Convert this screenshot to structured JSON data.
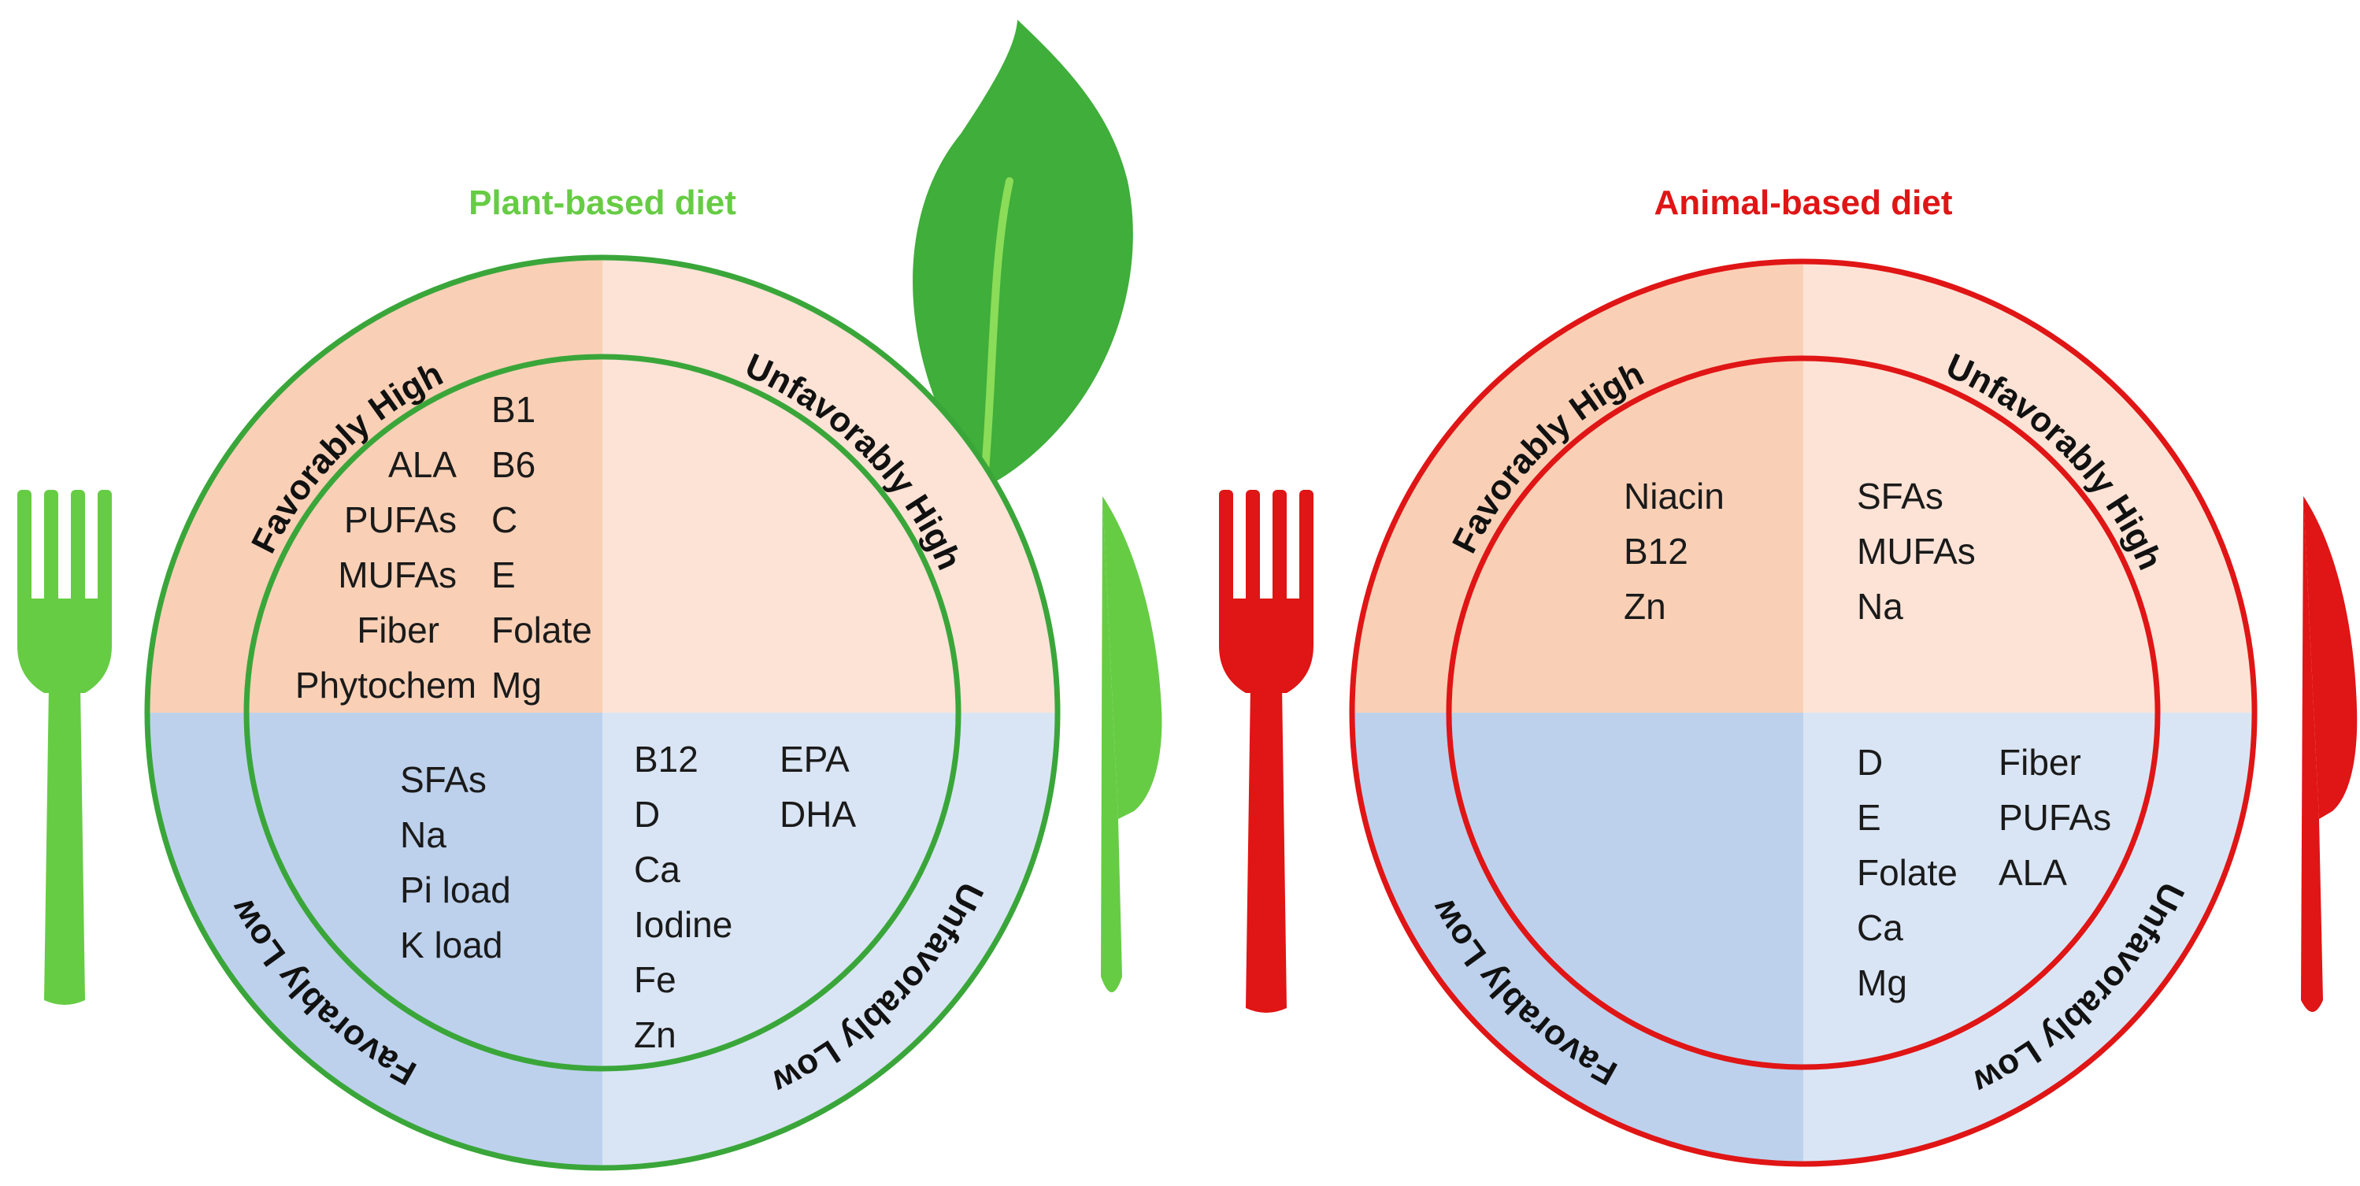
{
  "colors": {
    "plant_green": "#3aa63a",
    "plant_title": "#66cc44",
    "animal_red": "#e01515",
    "fav_high_fill": "#f9d0b6",
    "unfav_high_fill": "#fce3d6",
    "fav_low_fill": "#bdd1ec",
    "unfav_low_fill": "#d9e5f4"
  },
  "plates": [
    {
      "title": "Plant-based diet",
      "quadrant_labels": {
        "favorably_high": "Favorably High",
        "unfavorably_high": "Unfavorably High",
        "favorably_low": "Favorably Low",
        "unfavorably_low": "Unfavorably Low"
      },
      "favorably_high": {
        "col1": [
          "ALA",
          "PUFAs",
          "MUFAs",
          "Fiber",
          "Phytochem"
        ],
        "col2": [
          "B1",
          "B6",
          "C",
          "E",
          "Folate",
          "Mg"
        ]
      },
      "unfavorably_high": [],
      "favorably_low": [
        "SFAs",
        "Na",
        "Pi load",
        "K load"
      ],
      "unfavorably_low": {
        "col1": [
          "B12",
          "D",
          "Ca",
          "Iodine",
          "Fe",
          "Zn"
        ],
        "col2": [
          "EPA",
          "DHA"
        ]
      }
    },
    {
      "title": "Animal-based diet",
      "quadrant_labels": {
        "favorably_high": "Favorably High",
        "unfavorably_high": "Unfavorably High",
        "favorably_low": "Favorably Low",
        "unfavorably_low": "Unfavorably Low"
      },
      "favorably_high": [
        "Niacin",
        "B12",
        "Zn"
      ],
      "unfavorably_high": [
        "SFAs",
        "MUFAs",
        "Na"
      ],
      "favorably_low": [],
      "unfavorably_low": {
        "col1": [
          "D",
          "E",
          "Folate",
          "Ca",
          "Mg"
        ],
        "col2": [
          "Fiber",
          "PUFAs",
          "ALA"
        ]
      }
    }
  ]
}
